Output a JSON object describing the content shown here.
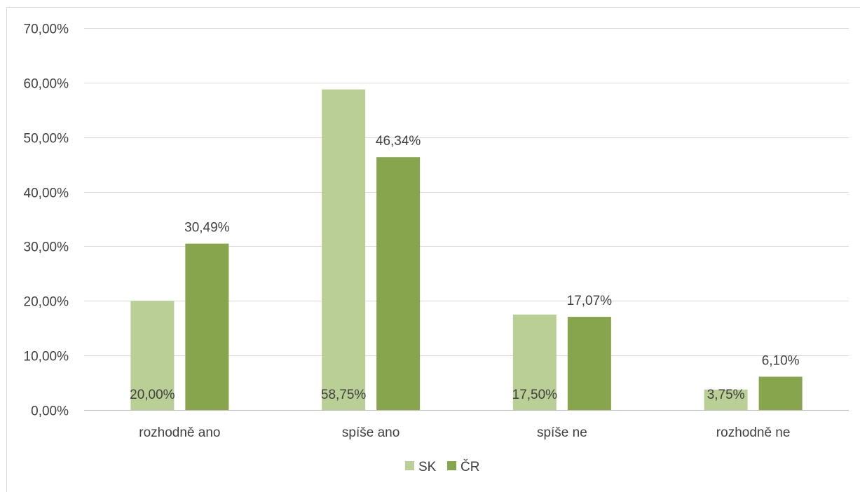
{
  "chart_data": {
    "type": "bar",
    "title": "",
    "xlabel": "",
    "ylabel": "",
    "categories": [
      "rozhodně ano",
      "spíše ano",
      "spíše ne",
      "rozhodně ne"
    ],
    "series": [
      {
        "name": "SK",
        "color": "#b9cf95",
        "values": [
          20.0,
          58.75,
          17.5,
          3.75
        ],
        "data_labels": [
          "20,00%",
          "58,75%",
          "17,50%",
          "3,75%"
        ],
        "label_position": "inside-base"
      },
      {
        "name": "ČR",
        "color": "#87a54c",
        "values": [
          30.49,
          46.34,
          17.07,
          6.1
        ],
        "data_labels": [
          "30,49%",
          "46,34%",
          "17,07%",
          "6,10%"
        ],
        "label_position": "outside-end"
      }
    ],
    "ylim": [
      0,
      70
    ],
    "ytick_step": 10,
    "ytick_labels": [
      "0,00%",
      "10,00%",
      "20,00%",
      "30,00%",
      "40,00%",
      "50,00%",
      "60,00%",
      "70,00%"
    ],
    "grid": true,
    "gridline_color": "#d9d9d9",
    "axis_line_color": "#bfbfbf",
    "frame_color": "#d9d9d9",
    "legend_position": "bottom-center"
  }
}
